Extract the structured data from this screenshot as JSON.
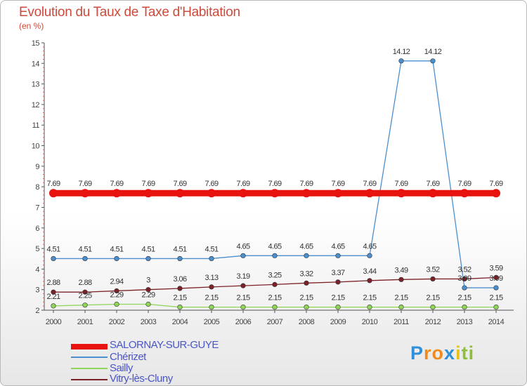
{
  "chart_data": {
    "type": "line",
    "title": "Evolution du Taux de Taxe d'Habitation",
    "ylabel": "(en %)",
    "xlabel": "",
    "ylim": [
      2,
      15
    ],
    "yticks": [
      "2",
      "3",
      "4",
      "5",
      "6",
      "7",
      "8",
      "9",
      "10",
      "11",
      "12",
      "13",
      "14",
      "15"
    ],
    "categories": [
      "2000",
      "2001",
      "2002",
      "2003",
      "2004",
      "2005",
      "2006",
      "2007",
      "2008",
      "2009",
      "2010",
      "2011",
      "2012",
      "2013",
      "2014"
    ],
    "series": [
      {
        "name": "SALORNAY-SUR-GUYE",
        "color": "#e8120f",
        "values": [
          7.69,
          7.69,
          7.69,
          7.69,
          7.69,
          7.69,
          7.69,
          7.69,
          7.69,
          7.69,
          7.69,
          7.69,
          7.69,
          7.69,
          7.69
        ],
        "labels": [
          "7.69",
          "7.69",
          "7.69",
          "7.69",
          "7.69",
          "7.69",
          "7.69",
          "7.69",
          "7.69",
          "7.69",
          "7.69",
          "7.69",
          "7.69",
          "7.69",
          "7.69"
        ]
      },
      {
        "name": "Chérizet",
        "color": "#4b8fcf",
        "values": [
          4.51,
          4.51,
          4.51,
          4.51,
          4.51,
          4.51,
          4.65,
          4.65,
          4.65,
          4.65,
          4.65,
          14.12,
          14.12,
          3.09,
          3.09
        ],
        "labels": [
          "4.51",
          "4.51",
          "4.51",
          "4.51",
          "4.51",
          "4.51",
          "4.65",
          "4.65",
          "4.65",
          "4.65",
          "4.65",
          "14.12",
          "14.12",
          "3.09",
          "3.09"
        ]
      },
      {
        "name": "Sailly",
        "color": "#8fd658",
        "values": [
          2.21,
          2.25,
          2.29,
          2.29,
          2.15,
          2.15,
          2.15,
          2.15,
          2.15,
          2.15,
          2.15,
          2.15,
          2.15,
          2.15,
          2.15
        ],
        "labels": [
          "2.21",
          "2.25",
          "2.29",
          "2.29",
          "2.15",
          "2.15",
          "2.15",
          "2.15",
          "2.15",
          "2.15",
          "2.15",
          "2.15",
          "2.15",
          "2.15",
          "2.15"
        ]
      },
      {
        "name": "Vitry-lès-Cluny",
        "color": "#7b2228",
        "values": [
          2.88,
          2.88,
          2.94,
          3,
          3.06,
          3.13,
          3.19,
          3.25,
          3.32,
          3.37,
          3.44,
          3.49,
          3.52,
          3.52,
          3.59
        ],
        "labels": [
          "2.88",
          "2.88",
          "2.94",
          "3",
          "3.06",
          "3.13",
          "3.19",
          "3.25",
          "3.32",
          "3.37",
          "3.44",
          "3.49",
          "3.52",
          "3.52",
          "3.59"
        ]
      }
    ],
    "legend_position": "bottom-left"
  },
  "logo": {
    "letters": [
      "P",
      "r",
      "o",
      "x",
      "i",
      "t",
      "i"
    ],
    "colors": [
      "#2f8fd8",
      "#f08a1c",
      "#f08a1c",
      "#2f8fd8",
      "#e8c21c",
      "#8fbf3a",
      "#8fbf3a"
    ]
  }
}
